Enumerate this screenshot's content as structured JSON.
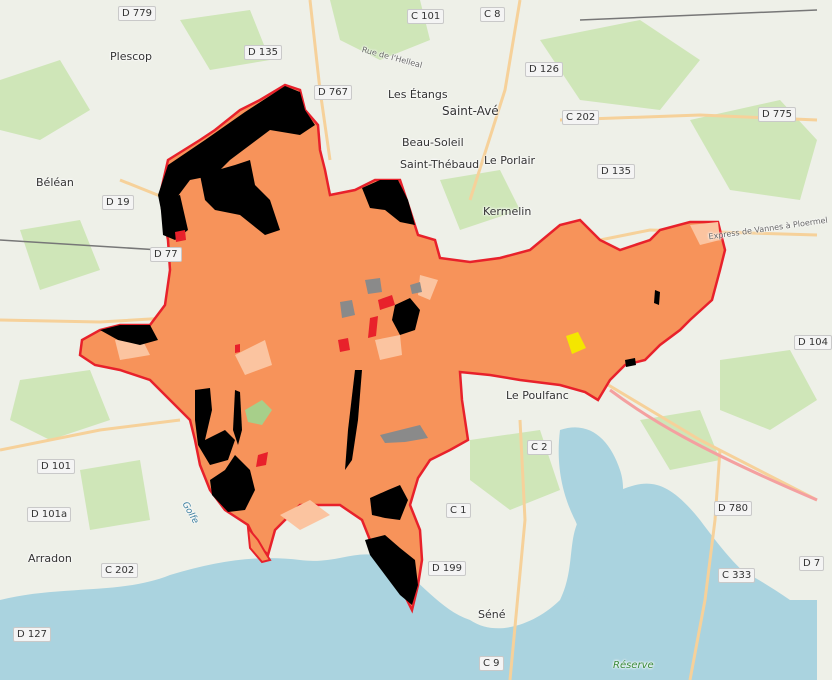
{
  "colors": {
    "land": "#eef0e8",
    "forest": "#cfe6b8",
    "water": "#aad3df",
    "district_fill": "#f7935a",
    "district_border": "#e8212b",
    "dark_zone": "#000000",
    "light_zone": "#fbc4a0",
    "grey_zone": "#8a8a8a",
    "red_zone": "#e8212b",
    "yellow_zone": "#f4e600",
    "green_zone": "#a7cf8a"
  },
  "towns": [
    {
      "id": "plescop",
      "name": "Plescop"
    },
    {
      "id": "les-etangs",
      "name": "Les Étangs"
    },
    {
      "id": "saint-ave",
      "name": "Saint-Avé"
    },
    {
      "id": "beau-soleil",
      "name": "Beau-Soleil"
    },
    {
      "id": "saint-thebaud",
      "name": "Saint-Thébaud"
    },
    {
      "id": "le-porlair",
      "name": "Le Porlair"
    },
    {
      "id": "kermelin",
      "name": "Kermelin"
    },
    {
      "id": "belean",
      "name": "Béléan"
    },
    {
      "id": "le-poulfanc",
      "name": "Le Poulfanc"
    },
    {
      "id": "arradon",
      "name": "Arradon"
    },
    {
      "id": "sene",
      "name": "Séné"
    }
  ],
  "roads": [
    {
      "id": "d779",
      "label": "D 779"
    },
    {
      "id": "c101",
      "label": "C 101"
    },
    {
      "id": "c8",
      "label": "C 8"
    },
    {
      "id": "d135a",
      "label": "D 135"
    },
    {
      "id": "d126",
      "label": "D 126"
    },
    {
      "id": "d767",
      "label": "D 767"
    },
    {
      "id": "c202a",
      "label": "C 202"
    },
    {
      "id": "d775",
      "label": "D 775"
    },
    {
      "id": "d135b",
      "label": "D 135"
    },
    {
      "id": "d19",
      "label": "D 19"
    },
    {
      "id": "d77",
      "label": "D 77"
    },
    {
      "id": "d104",
      "label": "D 104"
    },
    {
      "id": "c2",
      "label": "C 2"
    },
    {
      "id": "d101",
      "label": "D 101"
    },
    {
      "id": "d101a",
      "label": "D 101a"
    },
    {
      "id": "c1",
      "label": "C 1"
    },
    {
      "id": "d780",
      "label": "D 780"
    },
    {
      "id": "c202b",
      "label": "C 202"
    },
    {
      "id": "c333",
      "label": "C 333"
    },
    {
      "id": "d199",
      "label": "D 199"
    },
    {
      "id": "d127",
      "label": "D 127"
    },
    {
      "id": "c9",
      "label": "C 9"
    },
    {
      "id": "d7",
      "label": "D 7"
    }
  ],
  "streets": [
    {
      "id": "rue-helleal",
      "label": "Rue de l'Helleal"
    },
    {
      "id": "express",
      "label": "Express de Vannes à Ploermel"
    }
  ],
  "water_labels": [
    {
      "id": "golfe",
      "label": "Golfe"
    }
  ],
  "nature_labels": [
    {
      "id": "reserve",
      "label": "Réserve"
    }
  ]
}
